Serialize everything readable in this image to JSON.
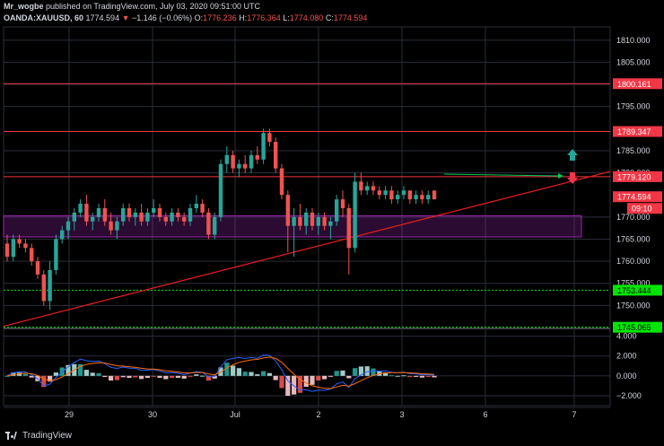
{
  "header": {
    "author": "Mr_wogbe",
    "published_text": "published on TradingView.com, July 03, 2020 09:51:00 UTC",
    "symbol": "OANDA:XAUUSD, 60",
    "last": "1774.594",
    "change": "−1.146 (−0.06%)",
    "o_label": "O:",
    "o": "1776.236",
    "h_label": "H:",
    "h": "1776.364",
    "l_label": "L:",
    "l": "1774.080",
    "c_label": "C:",
    "c": "1774.594"
  },
  "price_axis": {
    "ticks": [
      "1810.000",
      "1805.000",
      "1800.000",
      "1795.000",
      "1785.000",
      "1780.000",
      "1770.000",
      "1765.000",
      "1760.000",
      "1755.000",
      "1750.000"
    ],
    "tick_values": [
      1810,
      1805,
      1800,
      1795,
      1785,
      1780,
      1770,
      1765,
      1760,
      1755,
      1750
    ],
    "range": [
      1745,
      1813
    ]
  },
  "price_labels": [
    {
      "value": 1800.161,
      "text": "1800.161",
      "color": "#f23645",
      "text_color": "#ffffff"
    },
    {
      "value": 1789.347,
      "text": "1789.347",
      "color": "#f23645",
      "text_color": "#ffffff"
    },
    {
      "value": 1779.12,
      "text": "1779.120",
      "color": "#f23645",
      "text_color": "#ffffff"
    },
    {
      "value": 1774.594,
      "text": "1774.594",
      "color": "#f23645",
      "text_color": "#ffffff"
    },
    {
      "value": 1753.444,
      "text": "1753.444",
      "color": "#00e600",
      "text_color": "#000000"
    },
    {
      "value": 1745.065,
      "text": "1745.065",
      "color": "#00e600",
      "text_color": "#000000"
    }
  ],
  "countdown": "09:10",
  "time_axis": [
    "29",
    "30",
    "Jul",
    "2",
    "3",
    "6",
    "7"
  ],
  "macd_axis": {
    "ticks": [
      "4.000",
      "2.000",
      "0.000",
      "−2.000"
    ],
    "tick_values": [
      4,
      2,
      0,
      -2
    ],
    "range": [
      -3,
      4.6
    ]
  },
  "footer": {
    "brand": "TradingView"
  },
  "colors": {
    "up": "#26a69a",
    "down": "#ef5350",
    "grid": "#2a2e39",
    "trendline": "#e91e1e",
    "zone": "#9c27b0",
    "support": "#00e600",
    "macd": "#2962ff",
    "signal": "#ff6d00"
  },
  "chart_data": {
    "type": "candlestick",
    "series": [
      {
        "values": [
          1764,
          1766,
          1760,
          1761
        ]
      },
      {
        "values": [
          1761,
          1766,
          1760,
          1765
        ]
      },
      {
        "values": [
          1765,
          1766,
          1763,
          1764
        ]
      },
      {
        "values": [
          1764,
          1765,
          1762,
          1763
        ]
      },
      {
        "values": [
          1763,
          1764,
          1759,
          1760
        ]
      },
      {
        "values": [
          1760,
          1761,
          1756,
          1757
        ]
      },
      {
        "values": [
          1757,
          1758,
          1750,
          1751
        ]
      },
      {
        "values": [
          1751,
          1760,
          1749,
          1758
        ]
      },
      {
        "values": [
          1758,
          1766,
          1757,
          1765
        ]
      },
      {
        "values": [
          1765,
          1768,
          1764,
          1767
        ]
      },
      {
        "values": [
          1767,
          1770,
          1765,
          1769
        ]
      },
      {
        "values": [
          1769,
          1772,
          1767,
          1771
        ]
      },
      {
        "values": [
          1771,
          1774,
          1770,
          1773
        ]
      },
      {
        "values": [
          1773,
          1775,
          1768,
          1769
        ]
      },
      {
        "values": [
          1769,
          1771,
          1767,
          1770
        ]
      },
      {
        "values": [
          1770,
          1773,
          1769,
          1772
        ]
      },
      {
        "values": [
          1772,
          1774,
          1768,
          1769
        ]
      },
      {
        "values": [
          1769,
          1771,
          1766,
          1767
        ]
      },
      {
        "values": [
          1767,
          1770,
          1765,
          1769
        ]
      },
      {
        "values": [
          1769,
          1773,
          1768,
          1772
        ]
      },
      {
        "values": [
          1772,
          1773,
          1769,
          1770
        ]
      },
      {
        "values": [
          1770,
          1772,
          1768,
          1771
        ]
      },
      {
        "values": [
          1771,
          1773,
          1768,
          1769
        ]
      },
      {
        "values": [
          1769,
          1772,
          1768,
          1771
        ]
      },
      {
        "values": [
          1771,
          1774,
          1770,
          1772
        ]
      },
      {
        "values": [
          1772,
          1773,
          1769,
          1770
        ]
      },
      {
        "values": [
          1770,
          1771,
          1768,
          1769
        ]
      },
      {
        "values": [
          1769,
          1772,
          1768,
          1771
        ]
      },
      {
        "values": [
          1771,
          1772,
          1769,
          1770
        ]
      },
      {
        "values": [
          1770,
          1771,
          1768,
          1769
        ]
      },
      {
        "values": [
          1769,
          1773,
          1768,
          1772
        ]
      },
      {
        "values": [
          1772,
          1775,
          1771,
          1773
        ]
      },
      {
        "values": [
          1773,
          1774,
          1770,
          1771
        ]
      },
      {
        "values": [
          1771,
          1772,
          1765,
          1766
        ]
      },
      {
        "values": [
          1766,
          1771,
          1765,
          1770
        ]
      },
      {
        "values": [
          1770,
          1783,
          1769,
          1782
        ]
      },
      {
        "values": [
          1782,
          1786,
          1780,
          1784
        ]
      },
      {
        "values": [
          1784,
          1785,
          1780,
          1781
        ]
      },
      {
        "values": [
          1781,
          1783,
          1779,
          1782
        ]
      },
      {
        "values": [
          1782,
          1784,
          1780,
          1781
        ]
      },
      {
        "values": [
          1781,
          1785,
          1780,
          1784
        ]
      },
      {
        "values": [
          1784,
          1786,
          1782,
          1783
        ]
      },
      {
        "values": [
          1783,
          1790,
          1782,
          1789
        ]
      },
      {
        "values": [
          1789,
          1790,
          1786,
          1787
        ]
      },
      {
        "values": [
          1787,
          1788,
          1780,
          1781
        ]
      },
      {
        "values": [
          1781,
          1782,
          1774,
          1775
        ]
      },
      {
        "values": [
          1775,
          1776,
          1762,
          1768
        ]
      },
      {
        "values": [
          1768,
          1772,
          1761,
          1770
        ]
      },
      {
        "values": [
          1770,
          1773,
          1767,
          1768
        ]
      },
      {
        "values": [
          1768,
          1772,
          1766,
          1771
        ]
      },
      {
        "values": [
          1771,
          1772,
          1767,
          1768
        ]
      },
      {
        "values": [
          1768,
          1771,
          1766,
          1770
        ]
      },
      {
        "values": [
          1770,
          1771,
          1767,
          1768
        ]
      },
      {
        "values": [
          1768,
          1770,
          1765,
          1769
        ]
      },
      {
        "values": [
          1769,
          1775,
          1768,
          1774
        ]
      },
      {
        "values": [
          1774,
          1776,
          1770,
          1772
        ]
      },
      {
        "values": [
          1772,
          1773,
          1757,
          1763
        ]
      },
      {
        "values": [
          1763,
          1780,
          1762,
          1778
        ]
      },
      {
        "values": [
          1778,
          1780,
          1775,
          1776
        ]
      },
      {
        "values": [
          1776,
          1778,
          1775,
          1777
        ]
      },
      {
        "values": [
          1777,
          1778,
          1775,
          1776
        ]
      },
      {
        "values": [
          1776,
          1777,
          1774,
          1775
        ]
      },
      {
        "values": [
          1775,
          1777,
          1774,
          1776
        ]
      },
      {
        "values": [
          1776,
          1777,
          1773,
          1774
        ]
      },
      {
        "values": [
          1774,
          1776,
          1773,
          1775
        ]
      },
      {
        "values": [
          1775,
          1777,
          1774,
          1776
        ]
      },
      {
        "values": [
          1776,
          1776,
          1773,
          1774
        ]
      },
      {
        "values": [
          1774,
          1776,
          1773,
          1775
        ]
      },
      {
        "values": [
          1775,
          1776,
          1773,
          1774
        ]
      },
      {
        "values": [
          1774,
          1776,
          1773,
          1775
        ]
      },
      {
        "values": [
          1776,
          1776,
          1774,
          1774
        ]
      }
    ],
    "ylim": [
      1745,
      1813
    ]
  }
}
